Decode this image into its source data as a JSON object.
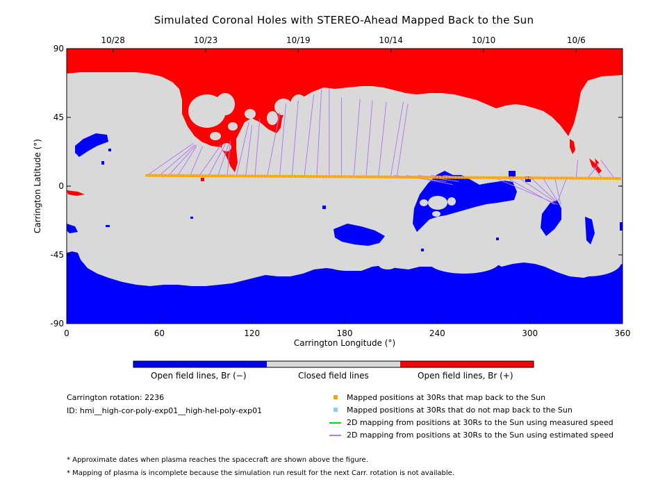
{
  "chart_data": {
    "type": "map",
    "title": "Simulated Coronal Holes with STEREO-Ahead Mapped Back to the Sun",
    "xlabel": "Carrington Longitude (°)",
    "ylabel": "Carrington Latitude (°)",
    "xlim": [
      0,
      360
    ],
    "ylim": [
      -90,
      90
    ],
    "x_ticks": [
      0,
      60,
      120,
      180,
      240,
      300,
      360
    ],
    "y_ticks": [
      -90,
      -45,
      0,
      45,
      90
    ],
    "top_dates": [
      {
        "label": "10/28",
        "lon": 30
      },
      {
        "label": "10/23",
        "lon": 90
      },
      {
        "label": "10/19",
        "lon": 150
      },
      {
        "label": "10/14",
        "lon": 210
      },
      {
        "label": "10/10",
        "lon": 270
      },
      {
        "label": "10/6",
        "lon": 330
      }
    ],
    "colorbar": [
      "Open field lines, Br (−)",
      "Closed field lines",
      "Open field lines, Br (+)"
    ],
    "colors": {
      "negative": "#0000ff",
      "closed": "#d9d9d9",
      "positive": "#ff0000",
      "mapped": "#ffa500",
      "not_mapped": "#87cefa",
      "measured": "#00dd00",
      "estimated": "#b07cf0"
    },
    "spacecraft_track": {
      "lon_start": 52,
      "lon_end": 358,
      "lat_start": 7,
      "lat_end": 5
    },
    "mapping_lines_estimated": [
      {
        "from": [
          52,
          7
        ],
        "to": [
          82,
          28
        ]
      },
      {
        "from": [
          60,
          7
        ],
        "to": [
          83,
          27
        ]
      },
      {
        "from": [
          66,
          7
        ],
        "to": [
          84,
          27
        ]
      },
      {
        "from": [
          72,
          7
        ],
        "to": [
          84,
          26
        ]
      },
      {
        "from": [
          80,
          7
        ],
        "to": [
          88,
          26
        ]
      },
      {
        "from": [
          86,
          7
        ],
        "to": [
          100,
          27
        ]
      },
      {
        "from": [
          92,
          7
        ],
        "to": [
          103,
          28
        ]
      },
      {
        "from": [
          98,
          7
        ],
        "to": [
          105,
          28
        ]
      },
      {
        "from": [
          104,
          7
        ],
        "to": [
          106,
          30
        ]
      },
      {
        "from": [
          110,
          7
        ],
        "to": [
          118,
          42
        ]
      },
      {
        "from": [
          116,
          7
        ],
        "to": [
          120,
          40
        ]
      },
      {
        "from": [
          122,
          7
        ],
        "to": [
          125,
          44
        ]
      },
      {
        "from": [
          130,
          7
        ],
        "to": [
          138,
          48
        ]
      },
      {
        "from": [
          138,
          7
        ],
        "to": [
          142,
          54
        ]
      },
      {
        "from": [
          146,
          7
        ],
        "to": [
          150,
          56
        ]
      },
      {
        "from": [
          154,
          7
        ],
        "to": [
          160,
          60
        ]
      },
      {
        "from": [
          162,
          7
        ],
        "to": [
          165,
          63
        ]
      },
      {
        "from": [
          170,
          7
        ],
        "to": [
          170,
          64
        ]
      },
      {
        "from": [
          178,
          7
        ],
        "to": [
          178,
          58
        ]
      },
      {
        "from": [
          186,
          7
        ],
        "to": [
          190,
          57
        ]
      },
      {
        "from": [
          194,
          7
        ],
        "to": [
          198,
          56
        ]
      },
      {
        "from": [
          202,
          7
        ],
        "to": [
          207,
          55
        ]
      },
      {
        "from": [
          210,
          7
        ],
        "to": [
          218,
          55
        ]
      },
      {
        "from": [
          214,
          7
        ],
        "to": [
          221,
          54
        ]
      },
      {
        "from": [
          212,
          7
        ],
        "to": [
          246,
          3
        ]
      },
      {
        "from": [
          220,
          7
        ],
        "to": [
          250,
          1
        ]
      },
      {
        "from": [
          228,
          7
        ],
        "to": [
          254,
          3
        ]
      },
      {
        "from": [
          236,
          7
        ],
        "to": [
          258,
          5
        ]
      },
      {
        "from": [
          244,
          7
        ],
        "to": [
          262,
          5
        ]
      },
      {
        "from": [
          276,
          6
        ],
        "to": [
          318,
          -12
        ]
      },
      {
        "from": [
          284,
          6
        ],
        "to": [
          316,
          -12
        ]
      },
      {
        "from": [
          292,
          6
        ],
        "to": [
          316,
          -10
        ]
      },
      {
        "from": [
          300,
          6
        ],
        "to": [
          317,
          -10
        ]
      },
      {
        "from": [
          308,
          6
        ],
        "to": [
          318,
          -10
        ]
      },
      {
        "from": [
          316,
          6
        ],
        "to": [
          320,
          -12
        ]
      },
      {
        "from": [
          324,
          6
        ],
        "to": [
          318,
          -10
        ]
      },
      {
        "from": [
          330,
          6
        ],
        "to": [
          331,
          17
        ]
      },
      {
        "from": [
          338,
          6
        ],
        "to": [
          345,
          15
        ]
      },
      {
        "from": [
          346,
          6
        ],
        "to": [
          341,
          13
        ]
      },
      {
        "from": [
          354,
          6
        ],
        "to": [
          346,
          17
        ]
      }
    ]
  },
  "info": {
    "rotation": "Carrington rotation: 2236",
    "id": "ID: hmi__high-cor-poly-exp01__high-hel-poly-exp01"
  },
  "legend": [
    {
      "label": "Mapped positions at 30Rs that map back to the Sun",
      "kind": "square",
      "color": "#ffa500"
    },
    {
      "label": "Mapped positions at 30Rs that do not map back to the Sun",
      "kind": "square",
      "color": "#87cefa"
    },
    {
      "label": "2D mapping from positions at 30Rs to the Sun using measured speed",
      "kind": "line",
      "color": "#00dd00"
    },
    {
      "label": "2D mapping from positions at 30Rs to the Sun using estimated speed",
      "kind": "line",
      "color": "#b07cf0"
    }
  ],
  "notes": [
    "* Approximate dates when plasma reaches the spacecraft are shown above the figure.",
    "* Mapping of plasma is incomplete because the simulation run result for the next Carr. rotation is not available."
  ]
}
